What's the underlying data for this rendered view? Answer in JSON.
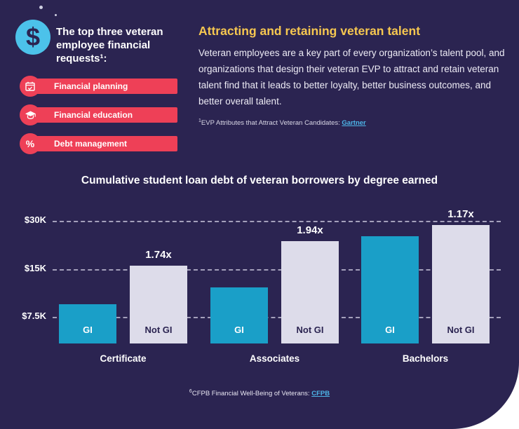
{
  "page": {
    "background": "#2b2451",
    "accent_red": "#ee4057",
    "accent_yellow": "#f6c750",
    "accent_blue": "#4cc2ea"
  },
  "left": {
    "heading": "The top three veteran employee financial requests¹:",
    "items": [
      {
        "label": "Financial planning",
        "icon": "calendar-icon"
      },
      {
        "label": "Financial education",
        "icon": "graduation-cap-icon"
      },
      {
        "label": "Debt management",
        "icon": "percent-icon"
      }
    ]
  },
  "right": {
    "title": "Attracting and retaining veteran talent",
    "body": "Veteran employees are a key part of every organization’s talent pool, and organizations that design their veteran EVP to attract and retain veteran talent find that it leads to better loyalty, better business outcomes, and better overall talent.",
    "footnote_sup": "1",
    "footnote_text": "EVP Attributes that Attract Veteran Candidates: ",
    "footnote_link": "Gartner"
  },
  "chart_data": {
    "type": "bar",
    "title": "Cumulative student loan debt of veteran borrowers by degree earned",
    "categories": [
      "Certificate",
      "Associates",
      "Bachelors"
    ],
    "series": [
      {
        "name": "GI",
        "color": "#1a9fc8",
        "label_color": "#ffffff",
        "values": [
          9000,
          11500,
          24000
        ]
      },
      {
        "name": "Not GI",
        "color": "#dddcea",
        "label_color": "#2b2451",
        "values": [
          15700,
          22300,
          28100
        ]
      }
    ],
    "ratio_labels": [
      "1.74x",
      "1.94x",
      "1.17x"
    ],
    "y_ticks": [
      {
        "label": "$7.5K",
        "value": 7500
      },
      {
        "label": "$15K",
        "value": 15000
      },
      {
        "label": "$30K",
        "value": 30000
      }
    ],
    "scale": "log2",
    "grid": "dashed-horizontal",
    "legend": "labels-inside-bars"
  },
  "footer": {
    "footnote_sup": "6",
    "footnote_text": "CFPB Financial Well-Being of Veterans: ",
    "footnote_link": "CFPB"
  }
}
